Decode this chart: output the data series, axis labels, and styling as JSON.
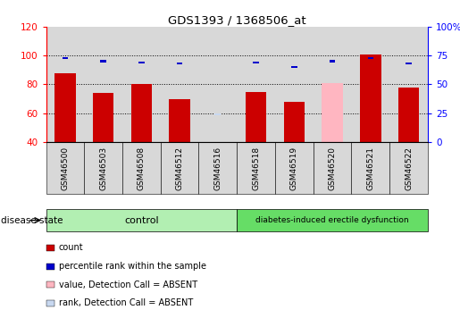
{
  "title": "GDS1393 / 1368506_at",
  "samples": [
    "GSM46500",
    "GSM46503",
    "GSM46508",
    "GSM46512",
    "GSM46516",
    "GSM46518",
    "GSM46519",
    "GSM46520",
    "GSM46521",
    "GSM46522"
  ],
  "count_values": [
    88,
    74,
    80,
    70,
    null,
    75,
    68,
    null,
    101,
    78
  ],
  "percentile_values": [
    73,
    70,
    69,
    68,
    null,
    69,
    65,
    70,
    73,
    68
  ],
  "absent_value_bar": [
    null,
    null,
    null,
    null,
    null,
    null,
    null,
    81,
    null,
    null
  ],
  "absent_rank_bar": [
    null,
    null,
    null,
    null,
    59,
    null,
    null,
    null,
    null,
    null
  ],
  "ylim": [
    40,
    120
  ],
  "yticks_left": [
    40,
    60,
    80,
    100,
    120
  ],
  "right_yticks_pct": [
    0,
    25,
    50,
    75,
    100
  ],
  "control_indices": [
    0,
    1,
    2,
    3,
    4
  ],
  "disease_indices": [
    5,
    6,
    7,
    8,
    9
  ],
  "control_label": "control",
  "disease_label": "diabetes-induced erectile dysfunction",
  "disease_state_label": "disease state",
  "control_bg": "#b2efb2",
  "disease_bg": "#66dd66",
  "col_bg": "#d8d8d8",
  "plot_bg": "#ffffff",
  "count_color": "#cc0000",
  "percentile_color": "#0000cc",
  "absent_value_color": "#ffb6c1",
  "absent_rank_color": "#c8d8f0",
  "legend_items": [
    "count",
    "percentile rank within the sample",
    "value, Detection Call = ABSENT",
    "rank, Detection Call = ABSENT"
  ]
}
